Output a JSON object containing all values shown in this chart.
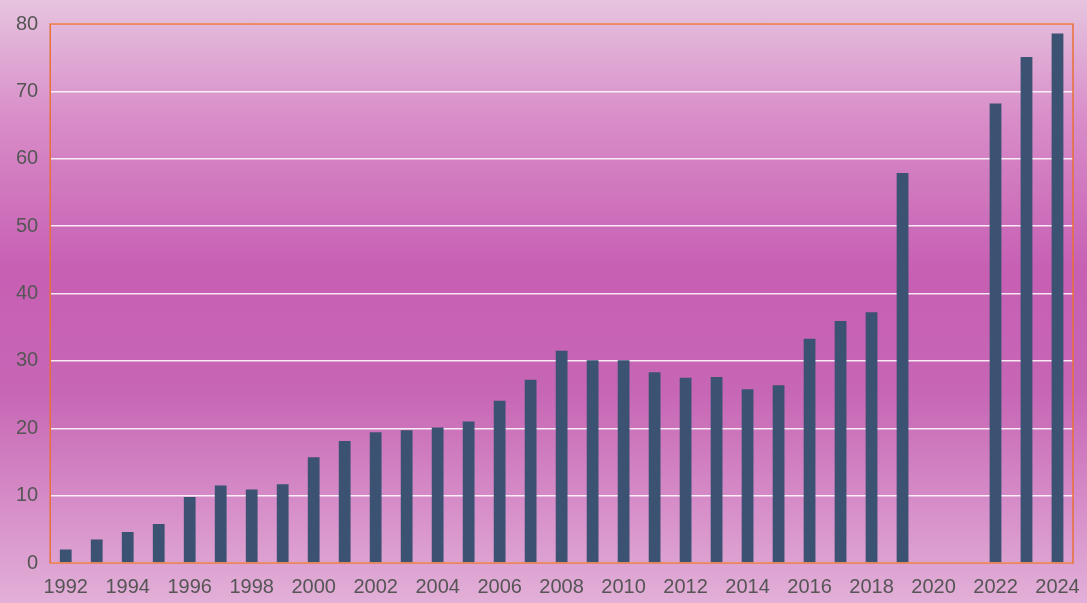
{
  "chart_data": {
    "type": "bar",
    "categories": [
      "1992",
      null,
      "1994",
      null,
      "1996",
      null,
      "1998",
      null,
      "2000",
      null,
      "2002",
      null,
      "2004",
      null,
      "2006",
      null,
      "2008",
      null,
      "2010",
      null,
      "2012",
      null,
      "2014",
      null,
      "2016",
      null,
      "2018",
      null,
      "2020",
      null,
      "2022",
      null,
      "2024"
    ],
    "values": [
      2.0,
      3.5,
      4.6,
      5.8,
      9.8,
      11.5,
      10.9,
      11.7,
      15.7,
      18.1,
      19.4,
      19.7,
      20.1,
      21.0,
      24.1,
      27.2,
      31.5,
      30.1,
      30.1,
      28.3,
      27.5,
      27.6,
      25.8,
      26.4,
      33.3,
      35.9,
      37.2,
      57.9,
      null,
      null,
      68.2,
      75.1,
      78.6
    ],
    "color": "#3c5272",
    "ylim": [
      0,
      80
    ],
    "yticks": [
      0,
      10,
      20,
      30,
      40,
      50,
      60,
      70,
      80
    ],
    "grid": "y",
    "legend": false
  }
}
